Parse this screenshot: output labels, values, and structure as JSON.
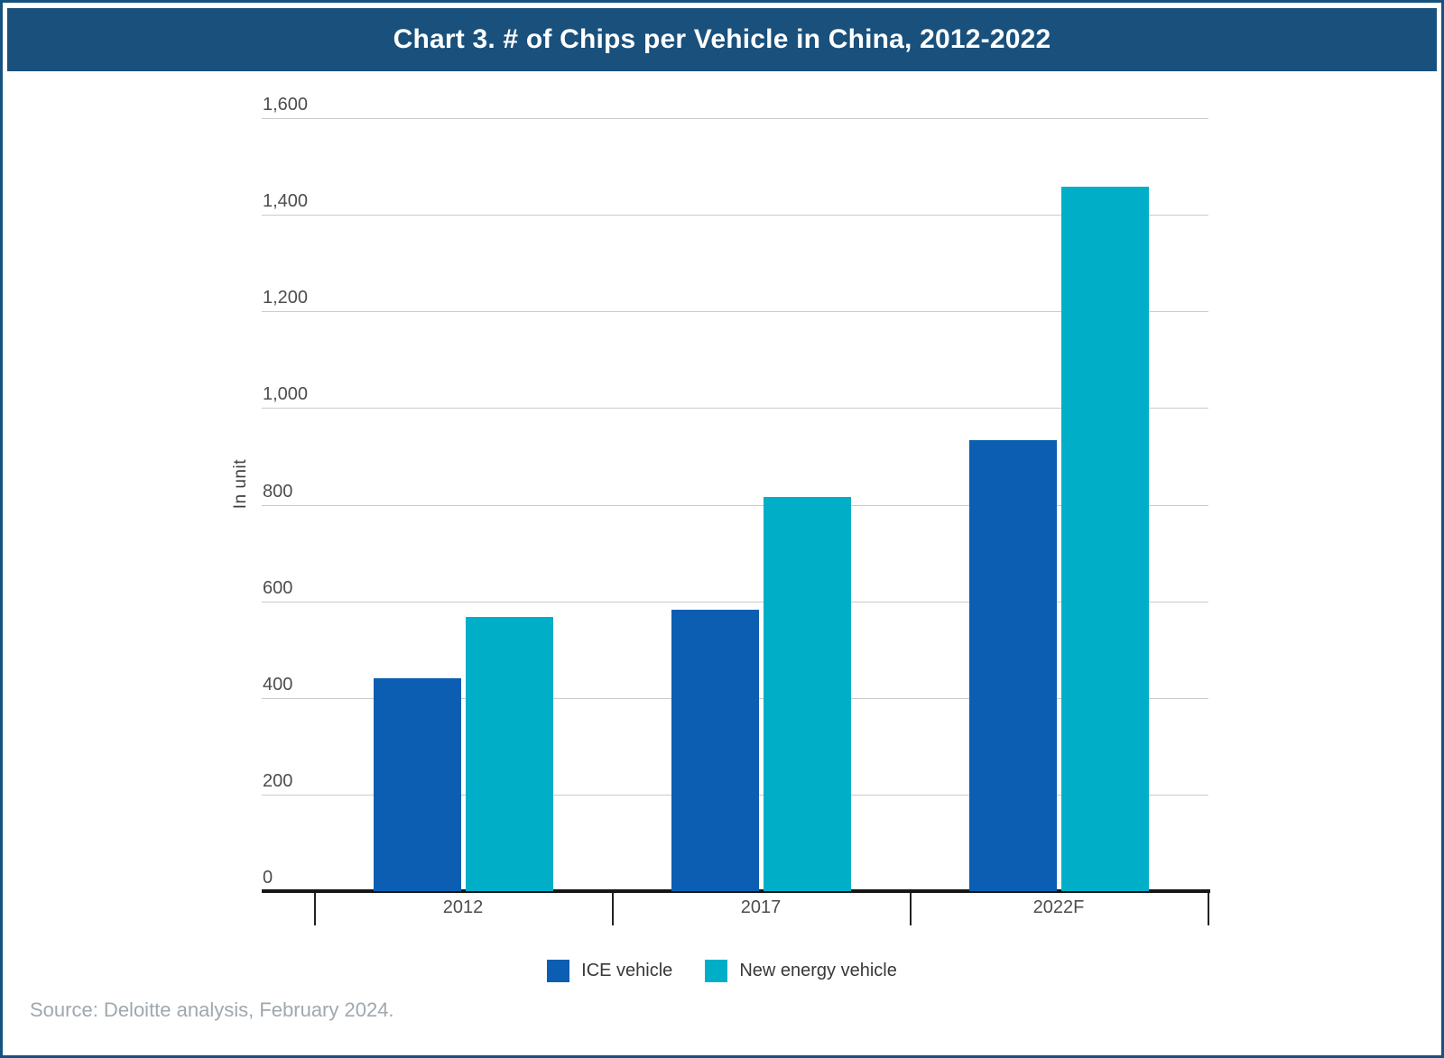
{
  "page": {
    "title": "Chart 3. # of Chips per Vehicle in China, 2012-2022",
    "source_note": "Source: Deloitte analysis, February 2024.",
    "colors": {
      "title_bar_bg": "#19507C",
      "title_text": "#FFFFFF",
      "page_border": "#16527E",
      "gridline": "#CBCBCB",
      "axis_line": "#161616",
      "tick_text": "#4D4D4D",
      "legend_text": "#383838",
      "source_text": "#9FA8AE"
    }
  },
  "chart_data": {
    "type": "bar",
    "title": "Chart 3. # of Chips per Vehicle in China, 2012-2022",
    "xlabel": "",
    "ylabel": "In unit",
    "categories": [
      "2012",
      "2017",
      "2022F"
    ],
    "series": [
      {
        "name": "ICE vehicle",
        "color": "#0B5EB2",
        "values": [
          440,
          583,
          933
        ]
      },
      {
        "name": "New energy vehicle",
        "color": "#00AFC7",
        "values": [
          567,
          815,
          1459
        ]
      }
    ],
    "ylim": [
      0,
      1600
    ],
    "yticks": [
      {
        "value": 0,
        "label": "0"
      },
      {
        "value": 200,
        "label": "200"
      },
      {
        "value": 400,
        "label": "400"
      },
      {
        "value": 600,
        "label": "600"
      },
      {
        "value": 800,
        "label": "800"
      },
      {
        "value": 1000,
        "label": "1,000"
      },
      {
        "value": 1200,
        "label": "1,200"
      },
      {
        "value": 1400,
        "label": "1,400"
      },
      {
        "value": 1600,
        "label": "1,600"
      }
    ],
    "grid": "horizontal",
    "legend_position": "bottom"
  }
}
